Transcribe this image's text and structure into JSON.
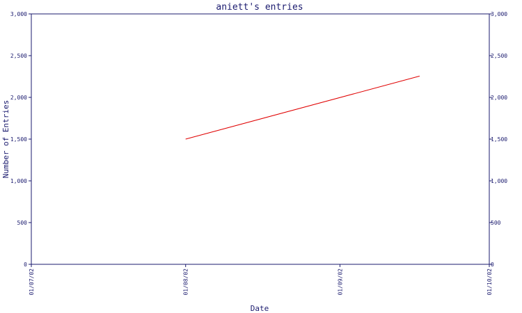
{
  "chart_data": {
    "type": "line",
    "title": "aniett's entries",
    "xlabel": "Date",
    "ylabel": "Number of Entries",
    "x_ticks": [
      "01/07/02",
      "01/08/02",
      "01/09/02",
      "01/10/02"
    ],
    "y_ticks": [
      "0",
      "500",
      "1,000",
      "1,500",
      "2,000",
      "2,500",
      "3,000"
    ],
    "ylim": [
      0,
      3000
    ],
    "xlim": [
      "2002-07-01",
      "2002-10-01"
    ],
    "grid": false,
    "series": [
      {
        "x": [
          "2002-08-01",
          "2002-09-17"
        ],
        "values": [
          1500,
          2255
        ]
      }
    ],
    "colors": {
      "axis": "#1a1a6e",
      "line": "#e00000"
    }
  }
}
